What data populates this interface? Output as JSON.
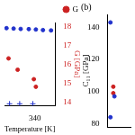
{
  "chart_data": [
    {
      "type": "scatter",
      "xlabel": "Temperature [K]",
      "ylabel": "G [GPa]",
      "xlim": [
        325,
        350
      ],
      "xticks": [
        340
      ],
      "ylim": [
        13.8,
        18.2
      ],
      "yticks": [
        14,
        15,
        16,
        17,
        18
      ],
      "grid": false,
      "legend": "upper right",
      "series": [
        {
          "color": "#2233cc",
          "marker": "circle",
          "x": [
            326,
            329.5,
            333,
            337,
            340.5,
            344,
            348
          ],
          "values": [
            17.9,
            17.88,
            17.86,
            17.85,
            17.83,
            17.8,
            17.78
          ]
        },
        {
          "name": "G",
          "color": "#cc2222",
          "marker": "circle",
          "x": [
            327,
            331.5,
            339.5,
            340.5
          ],
          "values": [
            16.3,
            15.7,
            15.2,
            14.8
          ]
        },
        {
          "color": "#2233cc",
          "marker": "plus",
          "x": [
            327.5,
            332.5,
            339
          ],
          "values": [
            13.9,
            13.9,
            13.9
          ]
        }
      ]
    },
    {
      "type": "scatter",
      "title": "(b)",
      "ylabel": "C₁₁ [GPa]",
      "xlim": [
        0,
        4
      ],
      "xticks": [],
      "ylim": [
        78,
        148
      ],
      "yticks": [
        80,
        100,
        120,
        140
      ],
      "grid": false,
      "tick_labels": "y",
      "series": [
        {
          "color": "#2233cc",
          "marker": "circle",
          "x": [
            0.5,
            1.2,
            0.5
          ],
          "values": [
            143,
            97,
            84
          ]
        },
        {
          "color": "#cc2222",
          "marker": "circle",
          "x": [
            1,
            1
          ],
          "values": [
            103,
            99
          ]
        }
      ]
    }
  ]
}
